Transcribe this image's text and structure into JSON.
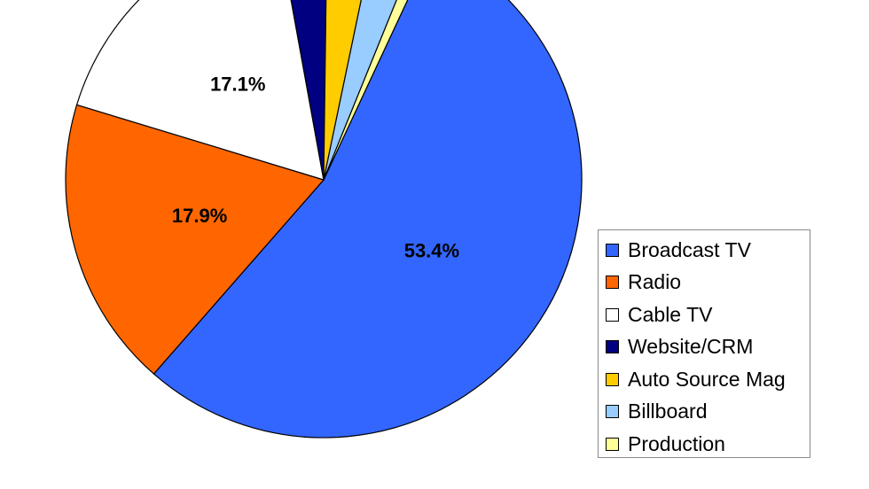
{
  "chart_data": {
    "type": "pie",
    "categories": [
      "Broadcast TV",
      "Radio",
      "Cable TV",
      "Website/CRM",
      "Auto Source Mag",
      "Billboard",
      "Production"
    ],
    "values": [
      53.4,
      17.9,
      17.1,
      3.0,
      3.0,
      2.8,
      0.8
    ],
    "data_labels": [
      "53.4%",
      "17.9%",
      "17.1%",
      "",
      "",
      "",
      ""
    ],
    "colors": [
      "#3366FF",
      "#FF6600",
      "#FFFFFF",
      "#000080",
      "#FFCC00",
      "#99CCFF",
      "#FFFF99"
    ],
    "legend_position": "right"
  }
}
